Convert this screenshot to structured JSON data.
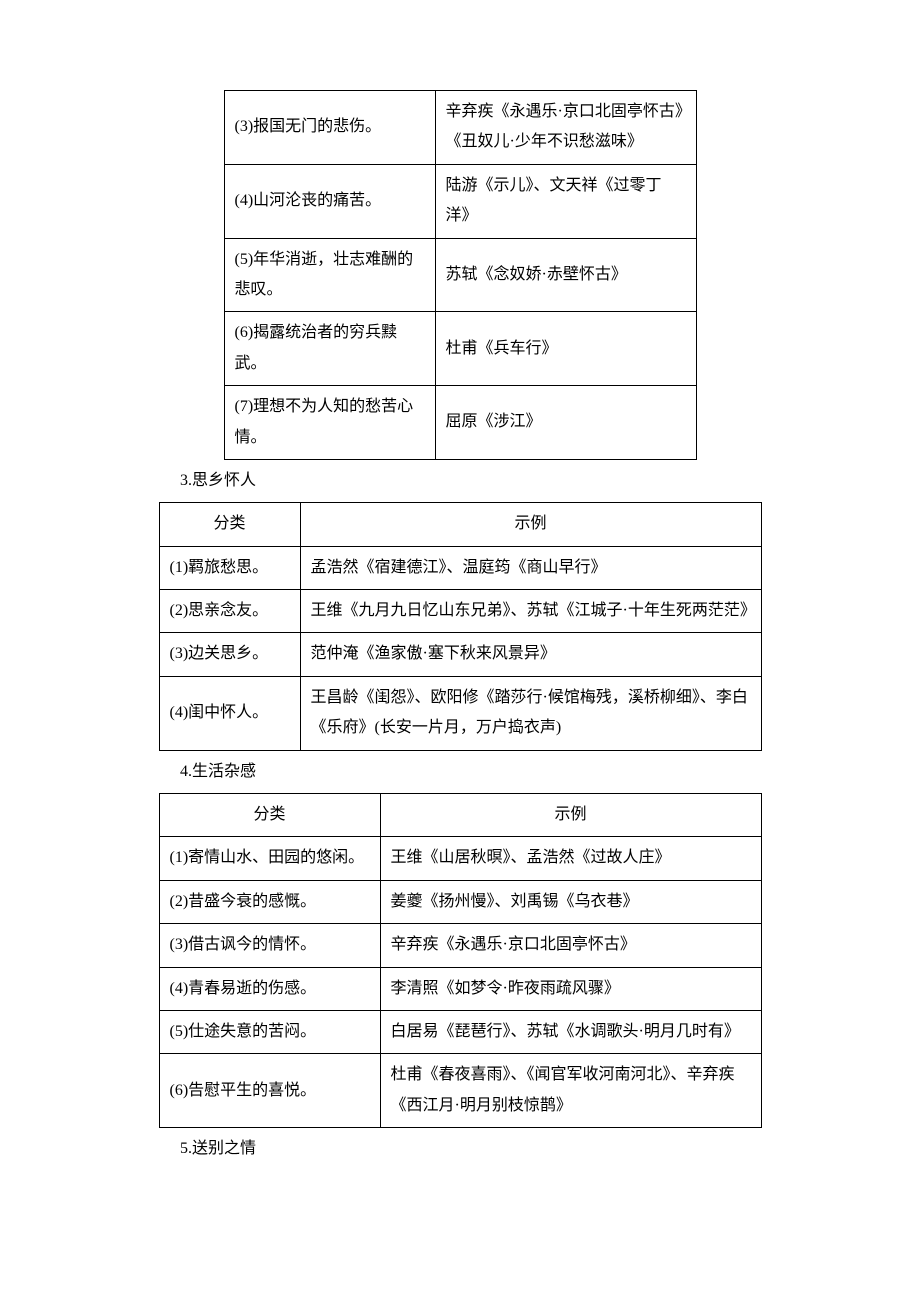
{
  "table1": {
    "rows": [
      {
        "category": "(3)报国无门的悲伤。",
        "example": "辛弃疾《永遇乐·京口北固亭怀古》《丑奴儿·少年不识愁滋味》"
      },
      {
        "category": "(4)山河沦丧的痛苦。",
        "example": "陆游《示儿》、文天祥《过零丁洋》"
      },
      {
        "category": "(5)年华消逝，壮志难酬的悲叹。",
        "example": "苏轼《念奴娇·赤壁怀古》"
      },
      {
        "category": "(6)揭露统治者的穷兵黩武。",
        "example": "杜甫《兵车行》"
      },
      {
        "category": "(7)理想不为人知的愁苦心情。",
        "example": "屈原《涉江》"
      }
    ]
  },
  "section3": {
    "title": "3.思乡怀人",
    "headers": {
      "col1": "分类",
      "col2": "示例"
    },
    "rows": [
      {
        "category": "(1)羁旅愁思。",
        "example": "孟浩然《宿建德江》、温庭筠《商山早行》"
      },
      {
        "category": "(2)思亲念友。",
        "example": "王维《九月九日忆山东兄弟》、苏轼《江城子·十年生死两茫茫》"
      },
      {
        "category": "(3)边关思乡。",
        "example": "范仲淹《渔家傲·塞下秋来风景异》"
      },
      {
        "category": "(4)闺中怀人。",
        "example": "王昌龄《闺怨》、欧阳修《踏莎行·候馆梅残，溪桥柳细》、李白《乐府》(长安一片月，万户捣衣声)"
      }
    ]
  },
  "section4": {
    "title": "4.生活杂感",
    "headers": {
      "col1": "分类",
      "col2": "示例"
    },
    "rows": [
      {
        "category": "(1)寄情山水、田园的悠闲。",
        "example": "王维《山居秋暝》、孟浩然《过故人庄》"
      },
      {
        "category": "(2)昔盛今衰的感慨。",
        "example": "姜夔《扬州慢》、刘禹锡《乌衣巷》"
      },
      {
        "category": "(3)借古讽今的情怀。",
        "example": "辛弃疾《永遇乐·京口北固亭怀古》"
      },
      {
        "category": "(4)青春易逝的伤感。",
        "example": "李清照《如梦令·昨夜雨疏风骤》"
      },
      {
        "category": "(5)仕途失意的苦闷。",
        "example": "白居易《琵琶行》、苏轼《水调歌头·明月几时有》"
      },
      {
        "category": "(6)告慰平生的喜悦。",
        "example": "杜甫《春夜喜雨》、《闻官军收河南河北》、辛弃疾《西江月·明月别枝惊鹊》"
      }
    ]
  },
  "section5": {
    "title": "5.送别之情"
  }
}
